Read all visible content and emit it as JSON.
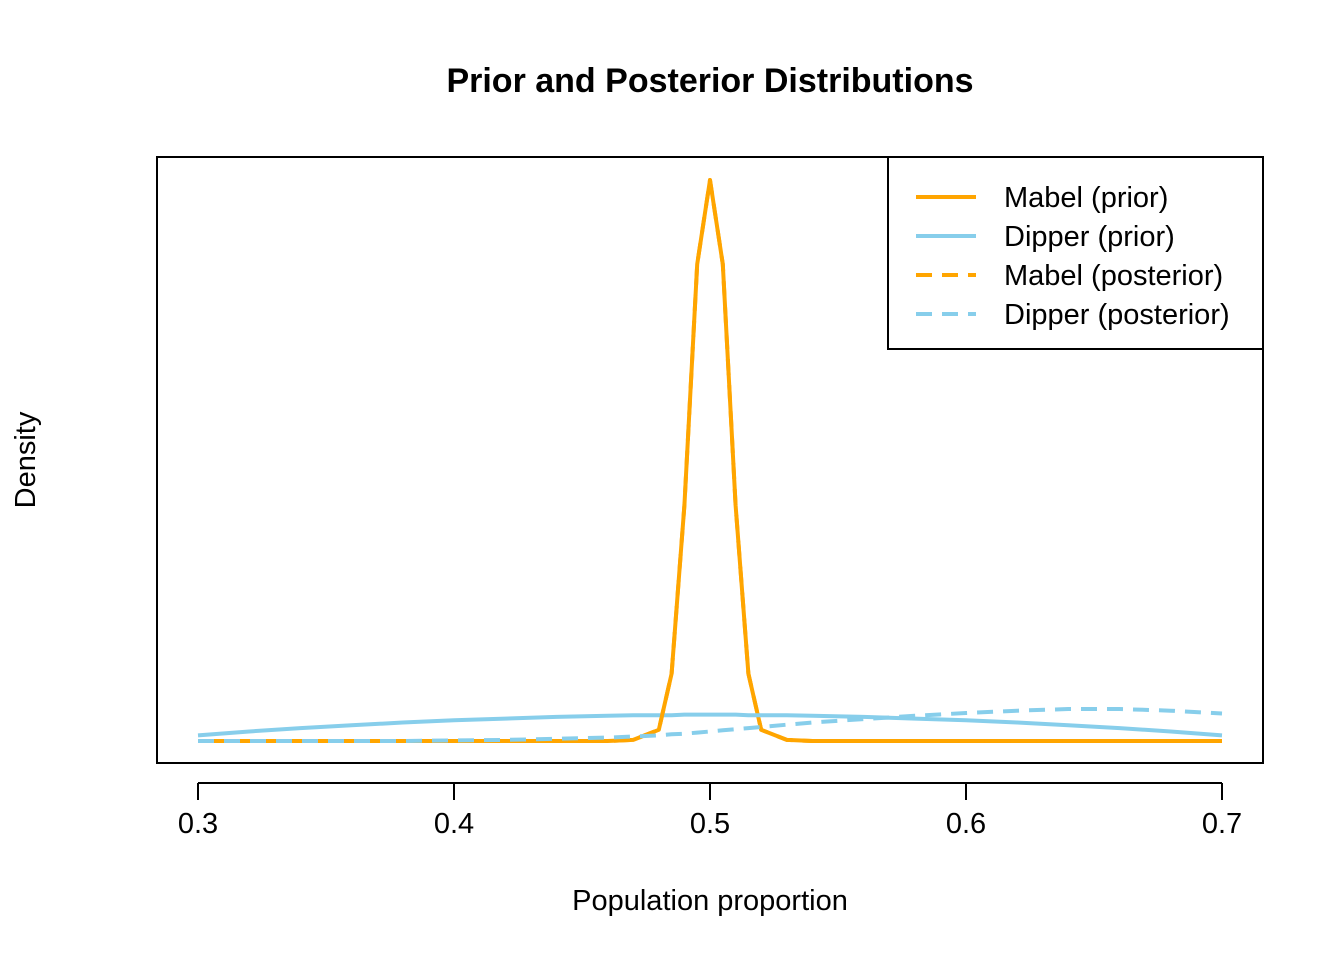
{
  "chart_data": {
    "type": "line",
    "title": "Prior and Posterior Distributions",
    "xlabel": "Population proportion",
    "ylabel": "Density",
    "xlim": [
      0.3,
      0.7
    ],
    "ylim": [
      0,
      1
    ],
    "x_ticks": [
      "0.3",
      "0.4",
      "0.5",
      "0.6",
      "0.7"
    ],
    "y_ticks_shown": false,
    "grid": false,
    "legend_position": "top-right",
    "x": [
      0.3,
      0.32,
      0.34,
      0.36,
      0.38,
      0.4,
      0.42,
      0.44,
      0.46,
      0.47,
      0.48,
      0.485,
      0.49,
      0.495,
      0.5,
      0.505,
      0.51,
      0.515,
      0.52,
      0.53,
      0.54,
      0.56,
      0.58,
      0.6,
      0.62,
      0.64,
      0.66,
      0.68,
      0.7
    ],
    "series": [
      {
        "name": "Mabel (prior)",
        "color": "#FFA500",
        "dash": "solid",
        "values": [
          0,
          0,
          0,
          0,
          0,
          0,
          0,
          0,
          0,
          0.002,
          0.02,
          0.12,
          0.42,
          0.85,
          1.0,
          0.85,
          0.42,
          0.12,
          0.02,
          0.002,
          0,
          0,
          0,
          0,
          0,
          0,
          0,
          0,
          0
        ]
      },
      {
        "name": "Dipper (prior)",
        "color": "#87CEEB",
        "dash": "solid",
        "values": [
          0.01,
          0.017,
          0.023,
          0.028,
          0.033,
          0.037,
          0.04,
          0.043,
          0.045,
          0.046,
          0.046,
          0.046,
          0.047,
          0.047,
          0.047,
          0.047,
          0.047,
          0.046,
          0.046,
          0.046,
          0.045,
          0.043,
          0.04,
          0.037,
          0.033,
          0.028,
          0.023,
          0.017,
          0.01
        ]
      },
      {
        "name": "Mabel (posterior)",
        "color": "#FFA500",
        "dash": "dashed",
        "values": [
          0,
          0,
          0,
          0,
          0,
          0,
          0,
          0,
          0,
          0.002,
          0.02,
          0.12,
          0.42,
          0.85,
          1.0,
          0.85,
          0.42,
          0.12,
          0.02,
          0.002,
          0,
          0,
          0,
          0,
          0,
          0,
          0,
          0,
          0
        ]
      },
      {
        "name": "Dipper (posterior)",
        "color": "#87CEEB",
        "dash": "dashed",
        "values": [
          0,
          0,
          0,
          0,
          0,
          0.001,
          0.002,
          0.004,
          0.006,
          0.008,
          0.01,
          0.012,
          0.013,
          0.015,
          0.017,
          0.019,
          0.021,
          0.023,
          0.025,
          0.029,
          0.033,
          0.039,
          0.045,
          0.05,
          0.054,
          0.057,
          0.057,
          0.054,
          0.049
        ]
      }
    ]
  }
}
